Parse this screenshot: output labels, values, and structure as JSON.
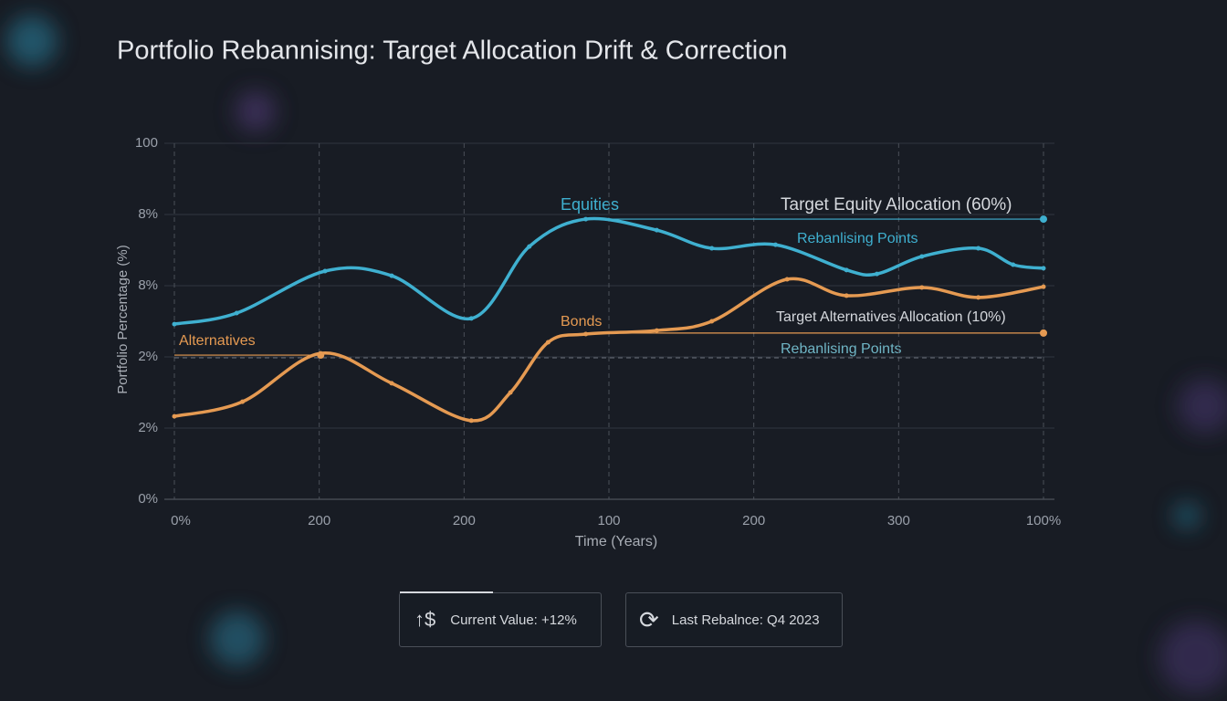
{
  "chart_data": {
    "type": "line",
    "title": "Portfolio Rebannising: Target Allocation Drift & Correction",
    "x_label": "Time (Years)",
    "y_label": "Portfolio Percentage (%)",
    "xlim": [
      0,
      6
    ],
    "ylim": [
      0,
      100
    ],
    "xticks": [
      {
        "value": 0,
        "label": "0%"
      },
      {
        "value": 1,
        "label": "200"
      },
      {
        "value": 2,
        "label": "200"
      },
      {
        "value": 3,
        "label": "100"
      },
      {
        "value": 4,
        "label": "200"
      },
      {
        "value": 5,
        "label": "300"
      },
      {
        "value": 6,
        "label": "100%"
      }
    ],
    "yticks": [
      {
        "value": 0,
        "label": "0%"
      },
      {
        "value": 20,
        "label": "2%"
      },
      {
        "value": 40,
        "label": "2%"
      },
      {
        "value": 60,
        "label": "8%"
      },
      {
        "value": 80,
        "label": "8%"
      },
      100
    ],
    "grid": true,
    "series": [
      {
        "name": "Equities",
        "color": "#3fb0d0",
        "x": [
          0,
          0.43,
          1.04,
          1.5,
          2.05,
          2.45,
          2.84,
          3.33,
          3.71,
          4.15,
          4.64,
          4.85,
          5.16,
          5.55,
          5.79,
          6
        ],
        "values": [
          49.2,
          52.3,
          64.1,
          62.8,
          50.8,
          71.0,
          78.7,
          75.6,
          70.5,
          71.5,
          64.4,
          63.3,
          68.2,
          70.5,
          65.9,
          64.9
        ]
      },
      {
        "name": "Bonds",
        "color": "#e59a52",
        "x": [
          0,
          0.47,
          1.01,
          1.5,
          2.05,
          2.32,
          2.58,
          2.84,
          3.33,
          3.71,
          4.23,
          4.64,
          5.16,
          5.55,
          6
        ],
        "values": [
          23.3,
          27.4,
          41.0,
          32.6,
          22.1,
          30.0,
          44.1,
          46.4,
          47.4,
          50.0,
          61.8,
          57.2,
          59.5,
          56.7,
          59.7
        ]
      }
    ],
    "reference_lines": [
      {
        "label": "Target Equity Allocation (60%)",
        "value": 78.7,
        "x": [
          2.84,
          6
        ],
        "color": "#3fb0d0"
      },
      {
        "label": "Target Alternatives Allocation (10%)",
        "value": 46.7,
        "x": [
          2.84,
          6
        ],
        "color": "#e59a52"
      },
      {
        "label": "Alternatives",
        "value": 40.5,
        "x": [
          0,
          1.01
        ],
        "color": "#e59a52"
      }
    ],
    "annotations": [
      "Rebanlising Points",
      "Rebanlising Points"
    ]
  },
  "cards": [
    "Current Value: +12%",
    "Last Rebalnce: Q4 2023"
  ]
}
